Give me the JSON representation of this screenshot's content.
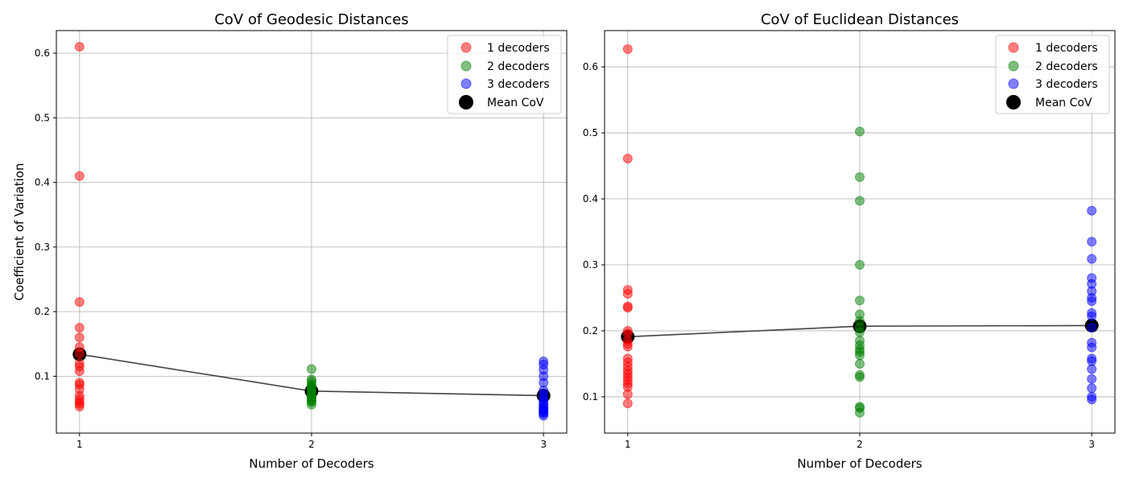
{
  "figure": {
    "colors": {
      "1": "#ff0000",
      "2": "#008000",
      "3": "#0000ff",
      "mean": "#000000",
      "mean_line": "#444444",
      "grid": "#b0b0b0"
    }
  },
  "chart_data": [
    {
      "type": "scatter",
      "title": "CoV of Geodesic Distances",
      "xlabel": "Number of Decoders",
      "ylabel": "Coefficient of Variation",
      "xticks": [
        "1",
        "2",
        "3"
      ],
      "xlim": [
        0.9,
        3.1
      ],
      "ylim": [
        0.012,
        0.635
      ],
      "yticks": [
        "0.1",
        "0.2",
        "0.3",
        "0.4",
        "0.5",
        "0.6"
      ],
      "grid": true,
      "legend_position": "upper right",
      "legend": [
        "1 decoders",
        "2 decoders",
        "3 decoders",
        "Mean CoV"
      ],
      "series": [
        {
          "name": "1 decoders",
          "x": 1,
          "values": [
            0.61,
            0.41,
            0.215,
            0.175,
            0.16,
            0.145,
            0.135,
            0.12,
            0.115,
            0.108,
            0.09,
            0.087,
            0.08,
            0.07,
            0.065,
            0.06,
            0.057,
            0.053
          ]
        },
        {
          "name": "2 decoders",
          "x": 2,
          "values": [
            0.111,
            0.095,
            0.092,
            0.088,
            0.085,
            0.083,
            0.08,
            0.078,
            0.075,
            0.072,
            0.07,
            0.068,
            0.066,
            0.064,
            0.062,
            0.06,
            0.056
          ]
        },
        {
          "name": "3 decoders",
          "x": 3,
          "values": [
            0.123,
            0.118,
            0.11,
            0.1,
            0.09,
            0.078,
            0.072,
            0.066,
            0.062,
            0.058,
            0.055,
            0.052,
            0.05,
            0.048,
            0.046,
            0.044,
            0.042,
            0.039
          ]
        },
        {
          "name": "Mean CoV",
          "x": [
            1,
            2,
            3
          ],
          "values": [
            0.134,
            0.077,
            0.07
          ]
        }
      ]
    },
    {
      "type": "scatter",
      "title": "CoV of Euclidean Distances",
      "xlabel": "Number of Decoders",
      "ylabel": "",
      "xticks": [
        "1",
        "2",
        "3"
      ],
      "xlim": [
        0.9,
        3.1
      ],
      "ylim": [
        0.045,
        0.655
      ],
      "yticks": [
        "0.1",
        "0.2",
        "0.3",
        "0.4",
        "0.5",
        "0.6"
      ],
      "grid": true,
      "legend_position": "upper right",
      "legend": [
        "1 decoders",
        "2 decoders",
        "3 decoders",
        "Mean CoV"
      ],
      "series": [
        {
          "name": "1 decoders",
          "x": 1,
          "values": [
            0.627,
            0.461,
            0.262,
            0.256,
            0.237,
            0.235,
            0.2,
            0.196,
            0.185,
            0.18,
            0.176,
            0.158,
            0.152,
            0.146,
            0.14,
            0.135,
            0.13,
            0.125,
            0.12,
            0.115,
            0.104,
            0.09
          ]
        },
        {
          "name": "2 decoders",
          "x": 2,
          "values": [
            0.502,
            0.433,
            0.397,
            0.3,
            0.246,
            0.225,
            0.215,
            0.205,
            0.198,
            0.185,
            0.178,
            0.172,
            0.168,
            0.163,
            0.15,
            0.133,
            0.13,
            0.085,
            0.083,
            0.076
          ]
        },
        {
          "name": "3 decoders",
          "x": 3,
          "values": [
            0.382,
            0.335,
            0.309,
            0.28,
            0.271,
            0.26,
            0.25,
            0.245,
            0.227,
            0.222,
            0.205,
            0.182,
            0.175,
            0.158,
            0.154,
            0.142,
            0.127,
            0.113,
            0.1,
            0.096
          ]
        },
        {
          "name": "Mean CoV",
          "x": [
            1,
            2,
            3
          ],
          "values": [
            0.191,
            0.207,
            0.208
          ]
        }
      ]
    }
  ]
}
